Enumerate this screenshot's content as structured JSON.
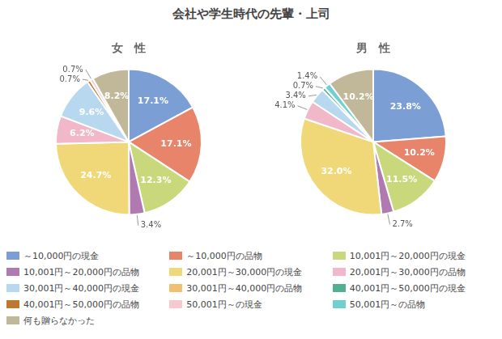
{
  "chart_data": [
    {
      "type": "pie",
      "title": "会社や学生時代の先輩・上司",
      "subtitle": "女　性",
      "categories": [
        "～10,000円の現金",
        "～10,000円の品物",
        "10,001円～20,000円の現金",
        "10,001円～20,000円の品物",
        "20,001円～30,000円の現金",
        "20,001円～30,000円の品物",
        "30,001円～40,000円の現金",
        "30,001円～40,000円の品物",
        "40,001円～50,000円の現金",
        "40,001円～50,000円の品物",
        "50,001円～の現金",
        "50,001円～の品物",
        "何も贈らなかった"
      ],
      "values": [
        17.1,
        17.1,
        12.3,
        3.4,
        24.7,
        6.2,
        9.6,
        null,
        null,
        0.7,
        0.7,
        null,
        8.2
      ],
      "value_labels": [
        "17.1%",
        "17.1%",
        "12.3%",
        "3.4%",
        "24.7%",
        "6.2%",
        "9.6%",
        null,
        null,
        "0.7%",
        "0.7%",
        null,
        "8.2%"
      ],
      "colors": [
        "#7b9fd4",
        "#e8846a",
        "#c8d87a",
        "#b07ab0",
        "#f0d878",
        "#f0b8c8",
        "#b8d8f0",
        "#f0c070",
        "#50b090",
        "#c07830",
        "#f8c8d0",
        "#70d0d0",
        "#c0b898"
      ],
      "data_labels": true,
      "legend": "bottom"
    },
    {
      "type": "pie",
      "subtitle": "男　性",
      "categories": [
        "～10,000円の現金",
        "～10,000円の品物",
        "10,001円～20,000円の現金",
        "10,001円～20,000円の品物",
        "20,001円～30,000円の現金",
        "20,001円～30,000円の品物",
        "30,001円～40,000円の現金",
        "30,001円～40,000円の品物",
        "40,001円～50,000円の現金",
        "40,001円～50,000円の品物",
        "50,001円～の現金",
        "50,001円～の品物",
        "何も贈らなかった"
      ],
      "values": [
        23.8,
        10.2,
        11.5,
        2.7,
        32.0,
        4.1,
        3.4,
        null,
        0.7,
        null,
        null,
        1.4,
        10.2
      ],
      "value_labels": [
        "23.8%",
        "10.2%",
        "11.5%",
        "2.7%",
        "32.0%",
        "4.1%",
        "3.4%",
        null,
        "0.7%",
        null,
        null,
        "1.4%",
        "10.2%"
      ],
      "colors": [
        "#7b9fd4",
        "#e8846a",
        "#c8d87a",
        "#b07ab0",
        "#f0d878",
        "#f0b8c8",
        "#b8d8f0",
        "#f0c070",
        "#50b090",
        "#c07830",
        "#f8c8d0",
        "#70d0d0",
        "#c0b898"
      ],
      "data_labels": true,
      "legend": "bottom"
    }
  ]
}
